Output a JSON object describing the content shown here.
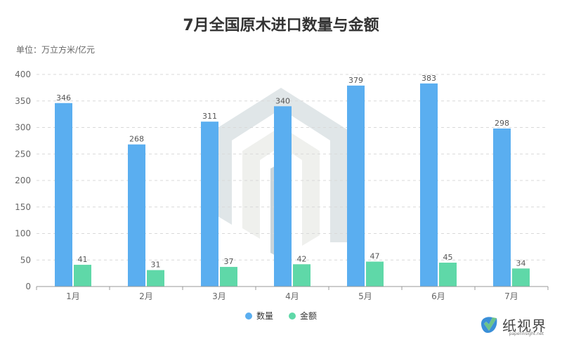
{
  "title": "7月全国原木进口数量与金额",
  "unit_label": "单位：万立方米/亿元",
  "watermark": {
    "brand": "纸视界",
    "site": "paperinsight.net"
  },
  "colors": {
    "quantity": "#5aaef0",
    "amount": "#5fd8a8",
    "grid": "#d9d9d9",
    "axis": "#999999",
    "label": "#666666"
  },
  "legend": [
    {
      "label": "数量",
      "color": "#5aaef0"
    },
    {
      "label": "金额",
      "color": "#5fd8a8"
    }
  ],
  "chart_data": {
    "type": "bar",
    "categories": [
      "1月",
      "2月",
      "3月",
      "4月",
      "5月",
      "6月",
      "7月"
    ],
    "series": [
      {
        "name": "数量",
        "values": [
          346,
          268,
          311,
          340,
          379,
          383,
          298
        ]
      },
      {
        "name": "金额",
        "values": [
          41,
          31,
          37,
          42,
          47,
          45,
          34
        ]
      }
    ],
    "ylim": [
      0,
      400
    ],
    "yticks": [
      0,
      50,
      100,
      150,
      200,
      250,
      300,
      350,
      400
    ],
    "grid": true,
    "legend_position": "bottom"
  }
}
